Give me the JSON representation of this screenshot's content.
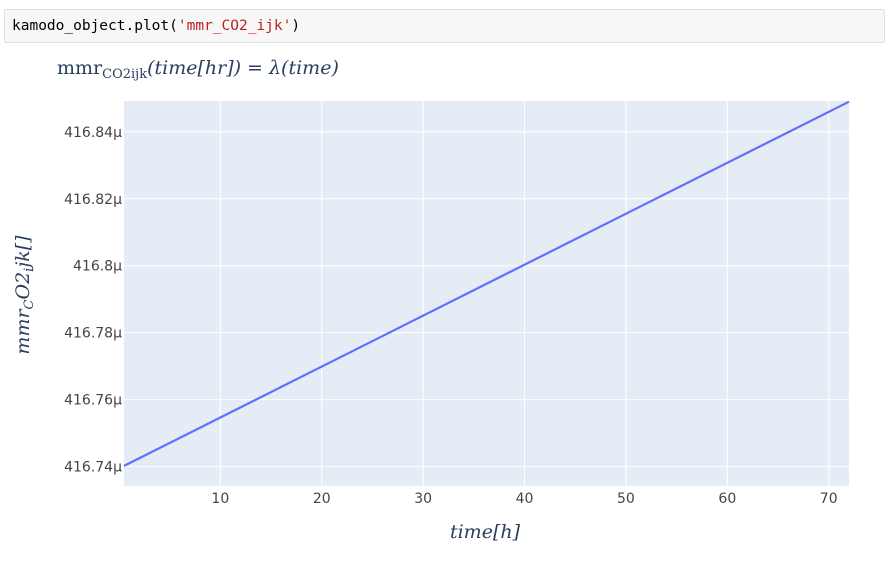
{
  "code": {
    "prefix": "kamodo_object.plot(",
    "arg": "'mmr_CO2_ijk'",
    "suffix": ")"
  },
  "chart_data": {
    "type": "line",
    "title_parts": {
      "base": "mmr",
      "sub": "CO2ijk",
      "rest": "(time[hr]) = λ(time)"
    },
    "xlabel": "time[h]",
    "ylabel_parts": {
      "a": "mmr",
      "b": "C",
      "c": "O2",
      "d": "i",
      "e": "jk[]"
    },
    "xlim": [
      0.5,
      72
    ],
    "ylim": [
      416.7342,
      416.8492
    ],
    "x_ticks": [
      10,
      20,
      30,
      40,
      50,
      60,
      70
    ],
    "x_tick_labels": [
      "10",
      "20",
      "30",
      "40",
      "50",
      "60",
      "70"
    ],
    "y_ticks": [
      416.74,
      416.76,
      416.78,
      416.8,
      416.82,
      416.84
    ],
    "y_tick_labels": [
      "416.74µ",
      "416.76µ",
      "416.78µ",
      "416.8µ",
      "416.82µ",
      "416.84µ"
    ],
    "grid": true,
    "series": [
      {
        "color": "#636efa",
        "x": [
          0.5,
          72
        ],
        "y": [
          416.7402,
          416.849
        ]
      }
    ],
    "colors": {
      "plot_bg": "#e5ecf6",
      "grid": "#ffffff",
      "text": "#2a3f5f"
    }
  }
}
